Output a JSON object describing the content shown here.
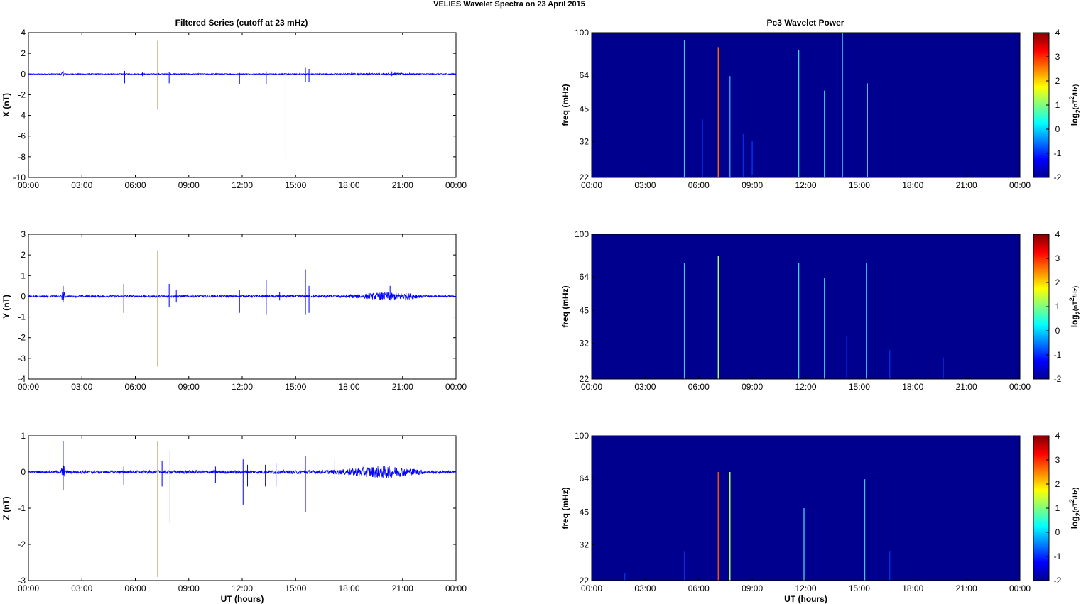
{
  "figure_title": "VELIES Wavelet Spectra on 23 April     2015",
  "left_title": "Filtered Series (cutoff at 23 mHz)",
  "right_title": "Pc3 Wavelet Power",
  "xlabel": "UT (hours)",
  "colorbar_label": "log2(nT2/Hz)",
  "colors": {
    "trace": "#0000ff",
    "spike": "#b8a060",
    "spec_bg": "#00008f"
  },
  "chart_data": [
    {
      "type": "line",
      "title": "Filtered Series (cutoff at 23 mHz)",
      "ylabel": "X (nT)",
      "ylim": [
        -10,
        4
      ],
      "yticks": [
        "4",
        "2",
        "0",
        "-2",
        "-4",
        "-6",
        "-8",
        "-10"
      ],
      "xticks": [
        "00:00",
        "03:00",
        "06:00",
        "09:00",
        "12:00",
        "15:00",
        "18:00",
        "21:00",
        "00:00"
      ],
      "noise_level": [
        [
          0,
          0.03
        ],
        [
          1.8,
          0.05
        ],
        [
          1.9,
          0.2
        ],
        [
          2.1,
          0.05
        ],
        [
          17,
          0.05
        ],
        [
          18.5,
          0.08
        ],
        [
          21,
          0.1
        ],
        [
          22,
          0.06
        ],
        [
          24,
          0.05
        ]
      ],
      "spikes": [
        [
          1.95,
          0.3,
          -0.2
        ],
        [
          5.4,
          0.3,
          -0.9
        ],
        [
          6.4,
          0.15,
          -0.2
        ],
        [
          7.25,
          3.2,
          -3.4
        ],
        [
          7.9,
          0.2,
          -0.9
        ],
        [
          11.85,
          0.1,
          -1.0
        ],
        [
          13.35,
          0.25,
          -1.0
        ],
        [
          14.45,
          0.3,
          -8.2
        ],
        [
          15.55,
          0.6,
          -0.8
        ],
        [
          15.75,
          0.5,
          -0.8
        ],
        [
          20.4,
          0.25,
          -0.2
        ]
      ],
      "spike_colored": [
        7.25,
        14.45
      ]
    },
    {
      "type": "line",
      "ylabel": "Y (nT)",
      "ylim": [
        -4,
        3
      ],
      "yticks": [
        "3",
        "2",
        "1",
        "0",
        "-1",
        "-2",
        "-3",
        "-4"
      ],
      "xticks": [
        "00:00",
        "03:00",
        "06:00",
        "09:00",
        "12:00",
        "15:00",
        "18:00",
        "21:00",
        "00:00"
      ],
      "noise_level": [
        [
          0,
          0.04
        ],
        [
          1.8,
          0.05
        ],
        [
          1.95,
          0.3
        ],
        [
          2.1,
          0.05
        ],
        [
          17,
          0.06
        ],
        [
          18.5,
          0.1
        ],
        [
          20,
          0.2
        ],
        [
          21.5,
          0.15
        ],
        [
          22.2,
          0.05
        ],
        [
          24,
          0.04
        ]
      ],
      "spikes": [
        [
          1.95,
          0.5,
          -0.3
        ],
        [
          5.35,
          0.6,
          -0.8
        ],
        [
          7.25,
          2.2,
          -3.4
        ],
        [
          7.9,
          0.6,
          -0.5
        ],
        [
          8.3,
          0.3,
          -0.3
        ],
        [
          11.85,
          0.3,
          -0.8
        ],
        [
          12.1,
          0.5,
          -0.3
        ],
        [
          13.35,
          0.8,
          -0.9
        ],
        [
          14.1,
          0.2,
          -0.2
        ],
        [
          15.55,
          1.3,
          -0.9
        ],
        [
          15.75,
          0.5,
          -0.8
        ],
        [
          20.3,
          0.5,
          -0.2
        ]
      ],
      "spike_colored": [
        7.25
      ]
    },
    {
      "type": "line",
      "xlabel": "UT (hours)",
      "ylabel": "Z (nT)",
      "ylim": [
        -3,
        1
      ],
      "yticks": [
        "1",
        "0",
        "-1",
        "-2",
        "-3"
      ],
      "xticks": [
        "00:00",
        "03:00",
        "06:00",
        "09:00",
        "12:00",
        "15:00",
        "18:00",
        "21:00",
        "00:00"
      ],
      "noise_level": [
        [
          0,
          0.03
        ],
        [
          1.8,
          0.04
        ],
        [
          1.95,
          0.25
        ],
        [
          2.1,
          0.04
        ],
        [
          16.5,
          0.05
        ],
        [
          17.5,
          0.07
        ],
        [
          18.5,
          0.12
        ],
        [
          20,
          0.18
        ],
        [
          21.5,
          0.1
        ],
        [
          22.5,
          0.04
        ],
        [
          24,
          0.03
        ]
      ],
      "spikes": [
        [
          1.95,
          0.85,
          -0.5
        ],
        [
          5.35,
          0.15,
          -0.35
        ],
        [
          7.25,
          0.85,
          -2.9
        ],
        [
          7.5,
          0.3,
          -0.4
        ],
        [
          7.95,
          0.6,
          -1.4
        ],
        [
          10.5,
          0.15,
          -0.3
        ],
        [
          12.05,
          0.35,
          -0.9
        ],
        [
          12.3,
          0.2,
          -0.4
        ],
        [
          13.3,
          0.2,
          -0.4
        ],
        [
          13.9,
          0.25,
          -0.4
        ],
        [
          15.55,
          0.45,
          -1.1
        ],
        [
          17.2,
          0.35,
          -0.2
        ]
      ],
      "spike_colored": [
        7.25
      ]
    },
    {
      "type": "heatmap",
      "title": "Pc3 Wavelet Power",
      "ylabel": "freq (mHz)",
      "yticks": [
        "100",
        "64",
        "45",
        "32",
        "22"
      ],
      "xticks": [
        "00:00",
        "03:00",
        "06:00",
        "09:00",
        "12:00",
        "15:00",
        "18:00",
        "21:00",
        "00:00"
      ],
      "clim": [
        -2,
        4
      ],
      "cticks": [
        "4",
        "3",
        "2",
        "1",
        "0",
        "-1",
        "-2"
      ],
      "events": [
        [
          5.2,
          0.95,
          0.15,
          "#4bbfe6"
        ],
        [
          6.2,
          0.4,
          0.1,
          "#0040ff"
        ],
        [
          7.1,
          0.9,
          0.4,
          "#ff6a00"
        ],
        [
          7.75,
          0.7,
          0.1,
          "#2a9de0"
        ],
        [
          8.5,
          0.3,
          0.1,
          "#0030e0"
        ],
        [
          9.0,
          0.25,
          0.1,
          "#0030e0"
        ],
        [
          11.6,
          0.88,
          0.12,
          "#4ad0e0"
        ],
        [
          13.05,
          0.6,
          0.12,
          "#3fd8c8"
        ],
        [
          14.05,
          1.0,
          0.1,
          "#4bbfe6"
        ],
        [
          15.45,
          0.65,
          0.12,
          "#4bbfe6"
        ]
      ]
    },
    {
      "type": "heatmap",
      "ylabel": "freq (mHz)",
      "yticks": [
        "100",
        "64",
        "45",
        "32",
        "22"
      ],
      "xticks": [
        "00:00",
        "03:00",
        "06:00",
        "09:00",
        "12:00",
        "15:00",
        "18:00",
        "21:00",
        "00:00"
      ],
      "clim": [
        -2,
        4
      ],
      "cticks": [
        "4",
        "3",
        "2",
        "1",
        "0",
        "-1",
        "-2"
      ],
      "events": [
        [
          5.2,
          0.8,
          0.15,
          "#4bbfe6"
        ],
        [
          7.1,
          0.85,
          0.2,
          "#b0ff60"
        ],
        [
          11.6,
          0.8,
          0.12,
          "#4ad0e0"
        ],
        [
          13.05,
          0.7,
          0.12,
          "#3fd8c8"
        ],
        [
          14.3,
          0.3,
          0.1,
          "#0030e0"
        ],
        [
          15.4,
          0.8,
          0.15,
          "#4bbfe6"
        ],
        [
          16.7,
          0.2,
          0.1,
          "#0030e0"
        ],
        [
          19.7,
          0.15,
          0.1,
          "#0030e0"
        ]
      ]
    },
    {
      "type": "heatmap",
      "ylabel": "freq (mHz)",
      "xlabel": "UT (hours)",
      "yticks": [
        "100",
        "64",
        "45",
        "32",
        "22"
      ],
      "xticks": [
        "00:00",
        "03:00",
        "06:00",
        "09:00",
        "12:00",
        "15:00",
        "18:00",
        "21:00",
        "00:00"
      ],
      "clim": [
        -2,
        4
      ],
      "cticks": [
        "4",
        "3",
        "2",
        "1",
        "0",
        "-1",
        "-2"
      ],
      "events": [
        [
          1.85,
          0.05,
          0.1,
          "#0030e0"
        ],
        [
          5.2,
          0.2,
          0.1,
          "#0030e0"
        ],
        [
          7.1,
          0.75,
          0.3,
          "#ff5000"
        ],
        [
          7.75,
          0.75,
          0.15,
          "#b0ff60"
        ],
        [
          11.9,
          0.5,
          0.12,
          "#3fa8e0"
        ],
        [
          15.3,
          0.7,
          0.12,
          "#4bbfe6"
        ],
        [
          16.7,
          0.2,
          0.1,
          "#0030e0"
        ]
      ]
    }
  ]
}
